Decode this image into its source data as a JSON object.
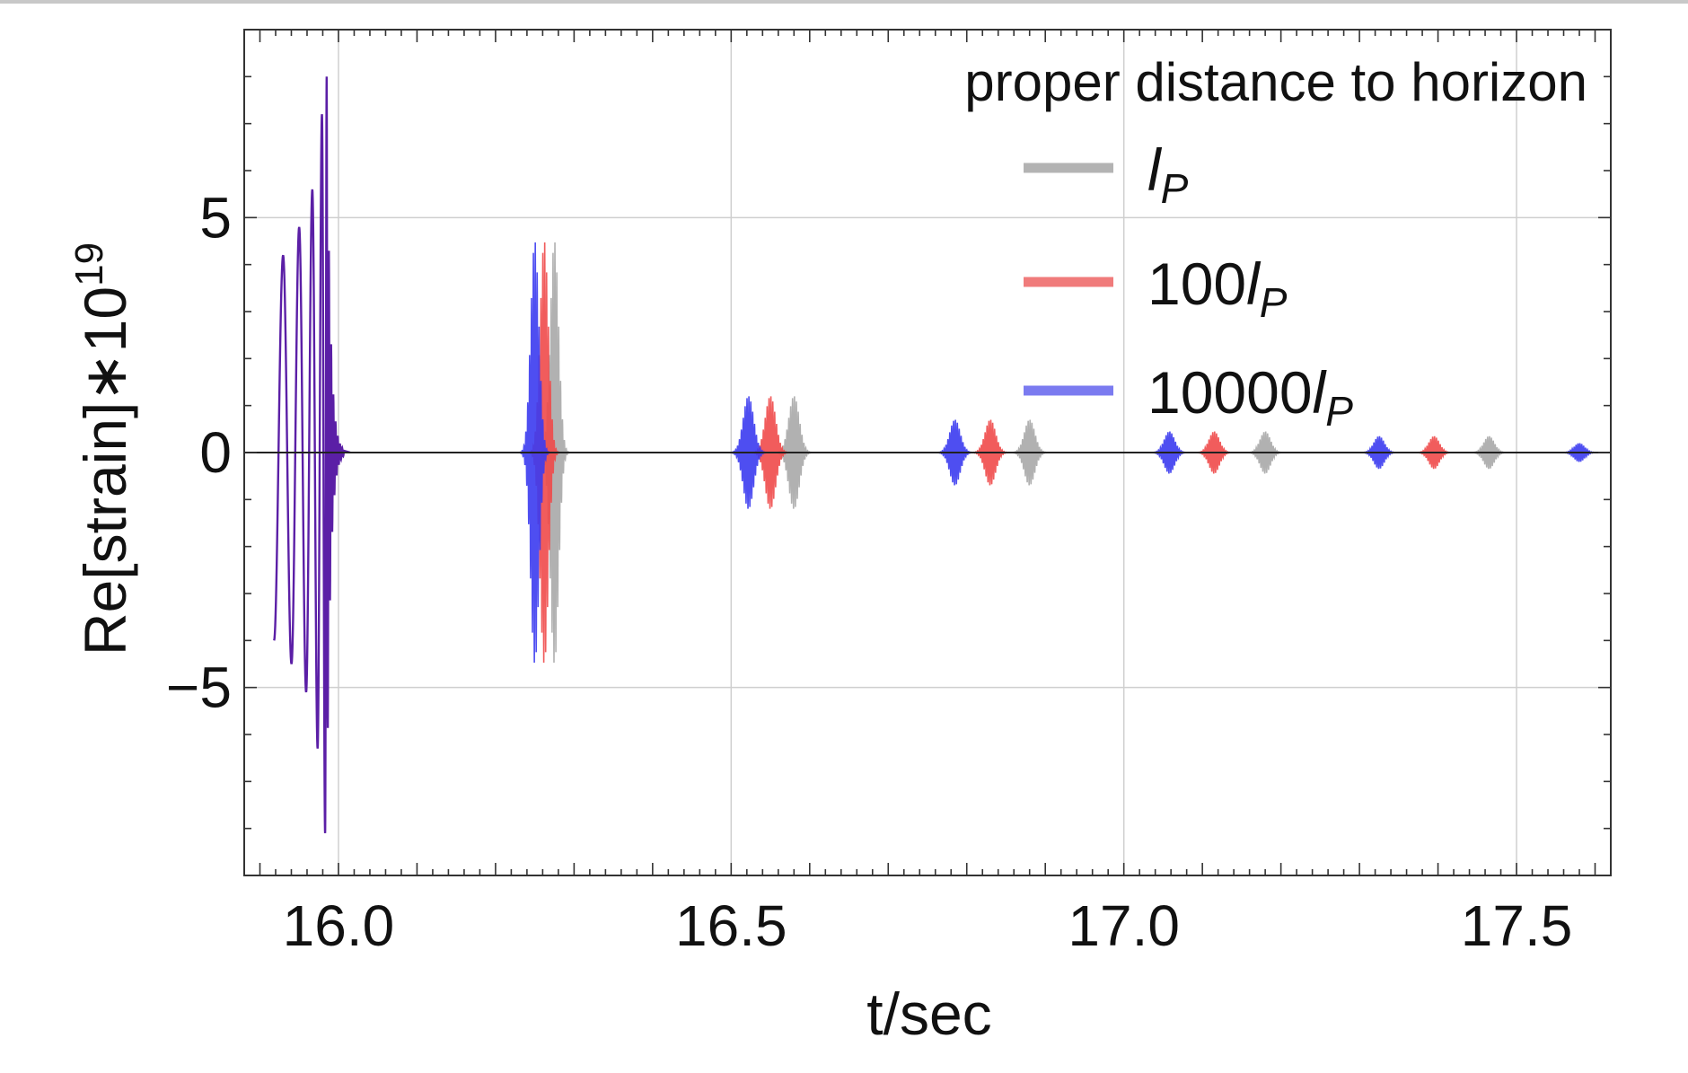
{
  "chart_data": {
    "type": "line",
    "title": "",
    "xlabel": "t/sec",
    "ylabel_main": "Re[strain]",
    "ylabel_op": "∗",
    "ylabel_base": "10",
    "ylabel_exp": "19",
    "xlim": [
      15.88,
      17.62
    ],
    "ylim": [
      -9.0,
      9.0
    ],
    "x_ticks": [
      16.0,
      16.5,
      17.0,
      17.5
    ],
    "x_tick_labels": [
      "16.0",
      "16.5",
      "17.0",
      "17.5"
    ],
    "y_ticks": [
      -5,
      0,
      5
    ],
    "y_tick_labels": [
      "−5",
      "0",
      "5"
    ],
    "grid": true,
    "legend": {
      "title": "proper distance to horizon",
      "position": "top-right",
      "entries": [
        {
          "prefix": "",
          "sym": "l",
          "sub": "P",
          "color": "#b3b3b3"
        },
        {
          "prefix": "100",
          "sym": "l",
          "sub": "P",
          "color": "#f07b7b"
        },
        {
          "prefix": "10000",
          "sym": "l",
          "sub": "P",
          "color": "#7b7bf0"
        }
      ]
    },
    "inspiral": {
      "color": "#5b1fa6",
      "t_start": 15.918,
      "t_merge": 15.985,
      "peaks": [
        -4.0,
        4.2,
        -4.5,
        4.8,
        -5.1,
        5.6,
        -6.3,
        7.2,
        -8.1,
        8.0
      ]
    },
    "echo_amplitude": 4.5,
    "series": [
      {
        "name": "l_P",
        "color": "#a8a8a8",
        "echo_times": [
          16.275,
          16.58,
          16.88,
          17.18,
          17.465
        ],
        "echo_amplitudes": [
          4.5,
          1.2,
          0.7,
          0.45,
          0.35
        ]
      },
      {
        "name": "100 l_P",
        "color": "#f04a4a",
        "echo_times": [
          16.262,
          16.55,
          16.83,
          17.115,
          17.395
        ],
        "echo_amplitudes": [
          4.5,
          1.2,
          0.7,
          0.45,
          0.35
        ]
      },
      {
        "name": "10000 l_P",
        "color": "#3b3bf0",
        "echo_times": [
          16.25,
          16.522,
          16.785,
          17.058,
          17.325,
          17.58
        ],
        "echo_amplitudes": [
          4.5,
          1.2,
          0.7,
          0.45,
          0.35,
          0.2
        ]
      }
    ]
  }
}
